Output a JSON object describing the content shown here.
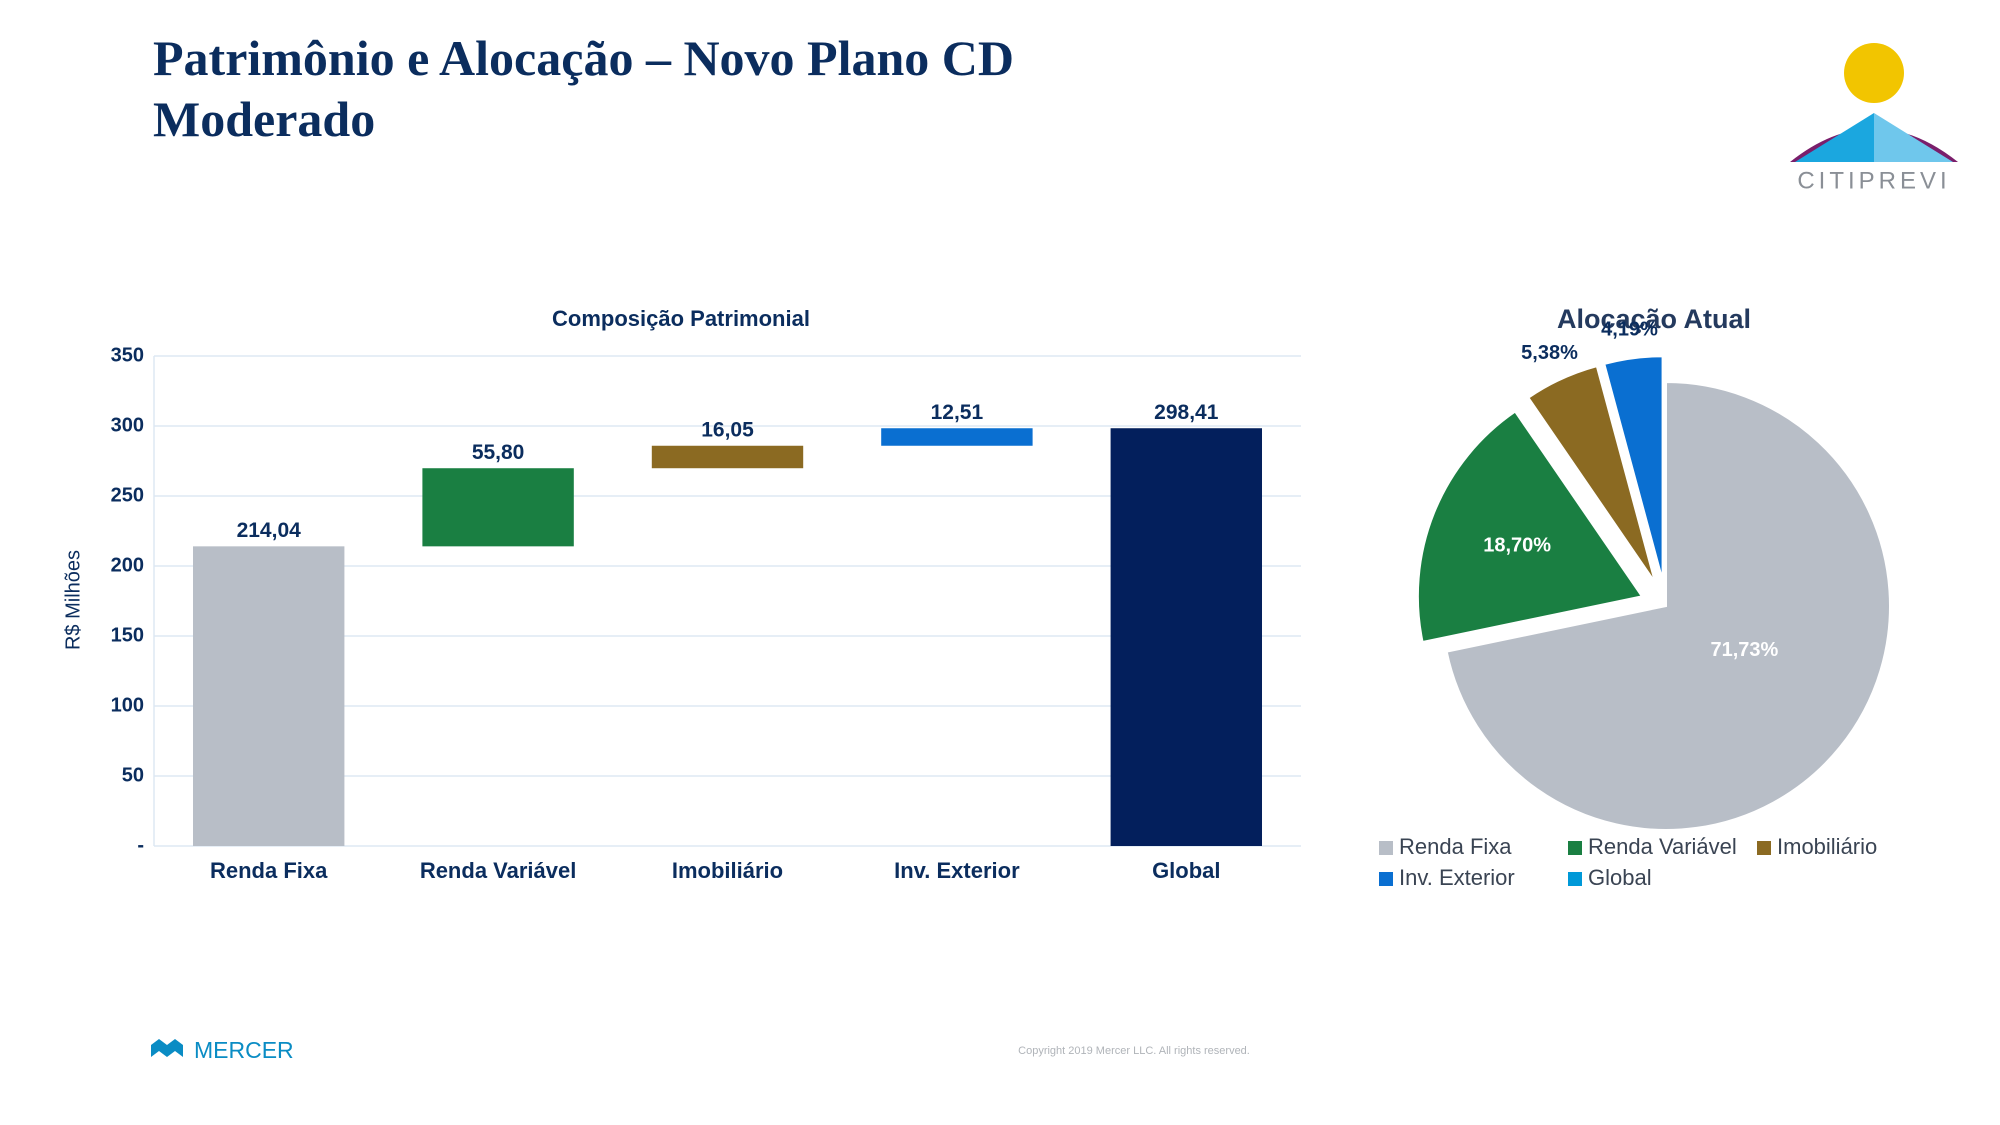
{
  "title": "Patrimônio e Alocação – Novo Plano CD Moderado",
  "logo_text": "CITIPREVI",
  "footer_brand": "MERCER",
  "copyright": "Copyright 2019 Mercer LLC. All rights reserved.",
  "chart_data": [
    {
      "type": "waterfall",
      "title": "Composição Patrimonial",
      "ylabel": "R$ Milhões",
      "categories": [
        "Renda Fixa",
        "Renda Variável",
        "Imobiliário",
        "Inv. Exterior",
        "Global"
      ],
      "values": [
        214.04,
        55.8,
        16.05,
        12.51,
        298.41
      ],
      "value_labels": [
        "214,04",
        "55,80",
        "16,05",
        "12,51",
        "298,41"
      ],
      "measure": [
        "absolute",
        "relative",
        "relative",
        "relative",
        "total"
      ],
      "colors": [
        "#b8bec7",
        "#1a7f42",
        "#8b6a22",
        "#0a6fd1",
        "#031f5c"
      ],
      "ylim": [
        0,
        350
      ],
      "yticks": [
        {
          "value": 0,
          "label": "-"
        },
        50,
        100,
        150,
        200,
        250,
        300,
        350
      ],
      "grid": true
    },
    {
      "type": "pie",
      "title": "Alocação Atual",
      "categories": [
        "Renda Fixa",
        "Renda Variável",
        "Imobiliário",
        "Inv. Exterior",
        "Global"
      ],
      "values": [
        71.73,
        18.7,
        5.38,
        4.19,
        0
      ],
      "value_labels": [
        "71,73%",
        "18,70%",
        "5,38%",
        "4,19%",
        null
      ],
      "colors": [
        "#b8bec7",
        "#1a7f42",
        "#8b6a22",
        "#0a6fd1",
        "#0099d8"
      ],
      "explode": [
        false,
        true,
        true,
        true,
        false
      ],
      "legend": "bottom"
    }
  ]
}
